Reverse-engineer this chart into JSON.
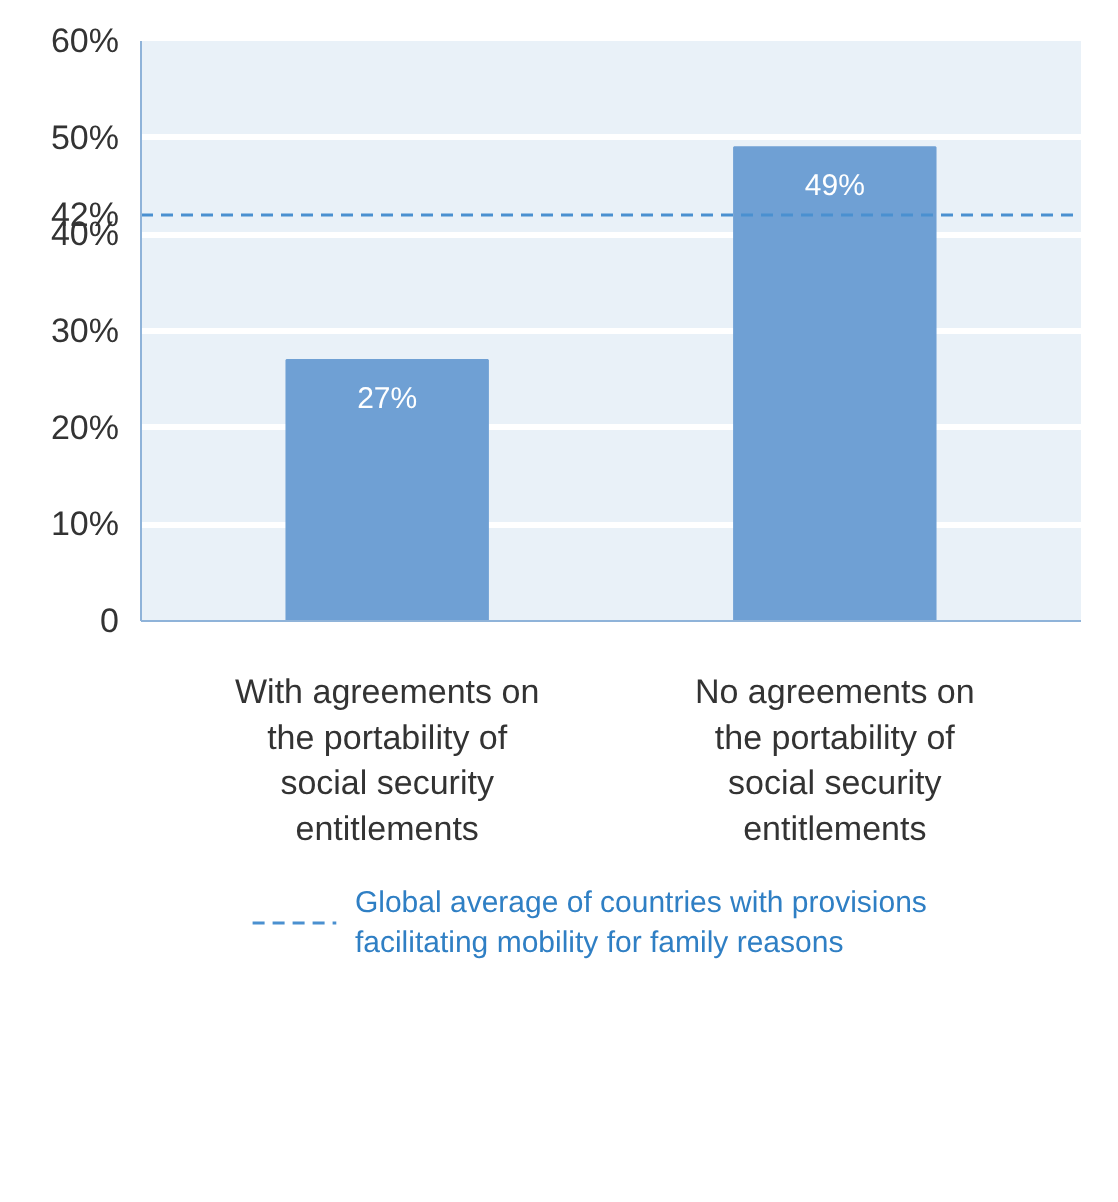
{
  "chart_data": {
    "type": "bar",
    "categories": [
      "With agreements on the portability of social security entitlements",
      "No agreements on the portability of social security entitlements"
    ],
    "values": [
      27,
      49
    ],
    "color": "#6fa0d4",
    "value_labels": [
      "27%",
      "49%"
    ],
    "ylim": [
      0,
      60
    ],
    "yticks": [
      {
        "value": 0,
        "label": "0"
      },
      {
        "value": 10,
        "label": "10%"
      },
      {
        "value": 20,
        "label": "20%"
      },
      {
        "value": 30,
        "label": "30%"
      },
      {
        "value": 40,
        "label": "40%"
      },
      {
        "value": 42,
        "label": "42%"
      },
      {
        "value": 50,
        "label": "50%"
      },
      {
        "value": 60,
        "label": "60%"
      }
    ],
    "grid": "y",
    "ref_lines": [
      {
        "axis": "y",
        "value": 42,
        "label": "Global average of countries with provisions facilitating mobility for family reasons",
        "color": "#4a90d0",
        "line_style": "dashed"
      }
    ],
    "data_labels": true,
    "legend": "bottom"
  }
}
